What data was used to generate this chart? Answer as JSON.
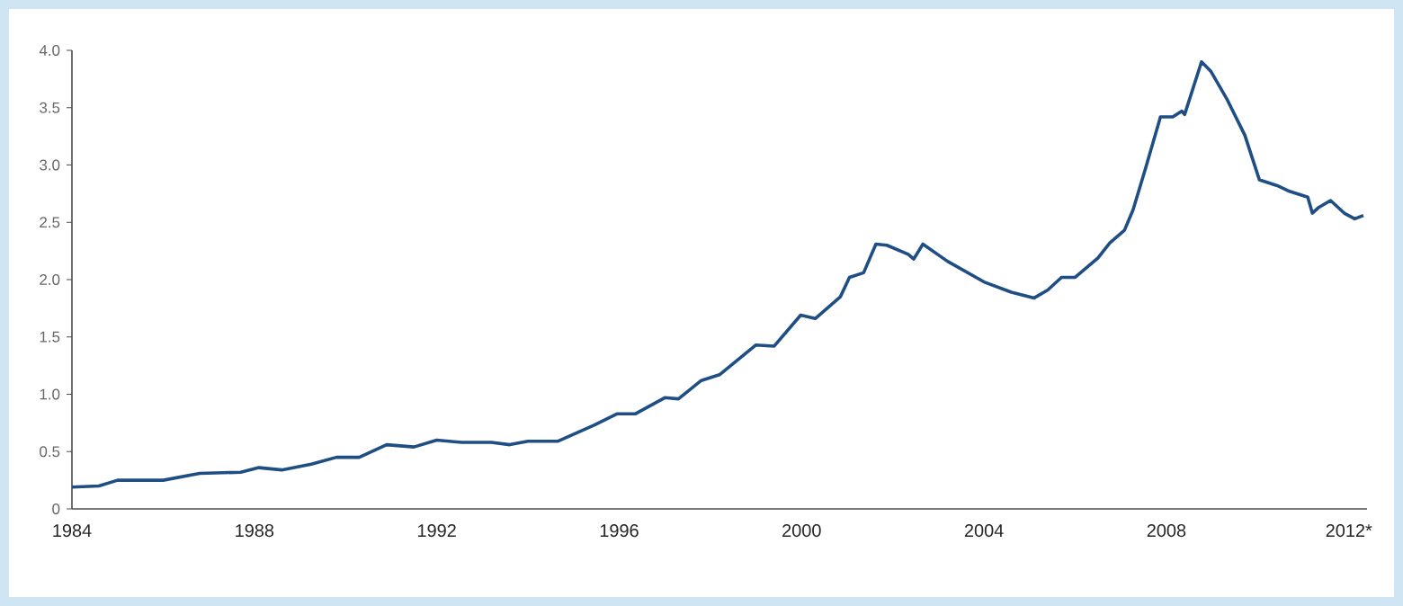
{
  "chart_data": {
    "type": "line",
    "color": "#1f4e84",
    "x": [
      1984.0,
      1984.59,
      1985.0,
      1986.0,
      1986.8,
      1987.7,
      1988.1,
      1988.6,
      1989.25,
      1989.8,
      1990.3,
      1990.9,
      1991.5,
      1992.0,
      1992.55,
      1993.2,
      1993.6,
      1994.0,
      1994.65,
      1995.05,
      1995.45,
      1995.96,
      1996.36,
      1997.0,
      1997.3,
      1997.8,
      1998.2,
      1999.0,
      1999.4,
      1999.98,
      2000.3,
      2000.85,
      2001.05,
      2001.36,
      2001.63,
      2001.87,
      2002.34,
      2002.46,
      2002.66,
      2003.2,
      2004.0,
      2004.6,
      2005.1,
      2005.4,
      2005.7,
      2006.0,
      2006.5,
      2006.76,
      2007.08,
      2007.27,
      2007.55,
      2007.87,
      2008.14,
      2008.34,
      2008.4,
      2008.77,
      2008.97,
      2009.32,
      2009.72,
      2010.04,
      2010.43,
      2010.7,
      2011.1,
      2011.2,
      2011.34,
      2011.6,
      2011.9,
      2012.13,
      2012.32
    ],
    "values": [
      0.19,
      0.2,
      0.25,
      0.25,
      0.31,
      0.32,
      0.36,
      0.34,
      0.39,
      0.45,
      0.45,
      0.56,
      0.54,
      0.6,
      0.58,
      0.58,
      0.56,
      0.59,
      0.59,
      0.66,
      0.73,
      0.83,
      0.83,
      0.97,
      0.96,
      1.12,
      1.17,
      1.43,
      1.42,
      1.69,
      1.66,
      1.85,
      2.02,
      2.06,
      2.31,
      2.3,
      2.22,
      2.18,
      2.31,
      2.16,
      1.98,
      1.89,
      1.84,
      1.91,
      2.02,
      2.02,
      2.19,
      2.32,
      2.43,
      2.61,
      2.98,
      3.42,
      3.42,
      3.47,
      3.44,
      3.9,
      3.82,
      3.58,
      3.26,
      2.87,
      2.82,
      2.77,
      2.72,
      2.58,
      2.63,
      2.69,
      2.58,
      2.53,
      2.56
    ],
    "xlim": [
      1984,
      2012.4
    ],
    "ylim": [
      0,
      4
    ],
    "xticks": [
      1984,
      1988,
      1992,
      1996,
      2000,
      2004,
      2008,
      {
        "value": 2012,
        "label": "2012*"
      }
    ],
    "yticks": [
      0,
      0.5,
      {
        "value": 1,
        "label": "1.0"
      },
      1.5,
      {
        "value": 2,
        "label": "2.0"
      },
      2.5,
      {
        "value": 3,
        "label": "3.0"
      },
      3.5,
      {
        "value": 4,
        "label": "4.0"
      }
    ]
  }
}
